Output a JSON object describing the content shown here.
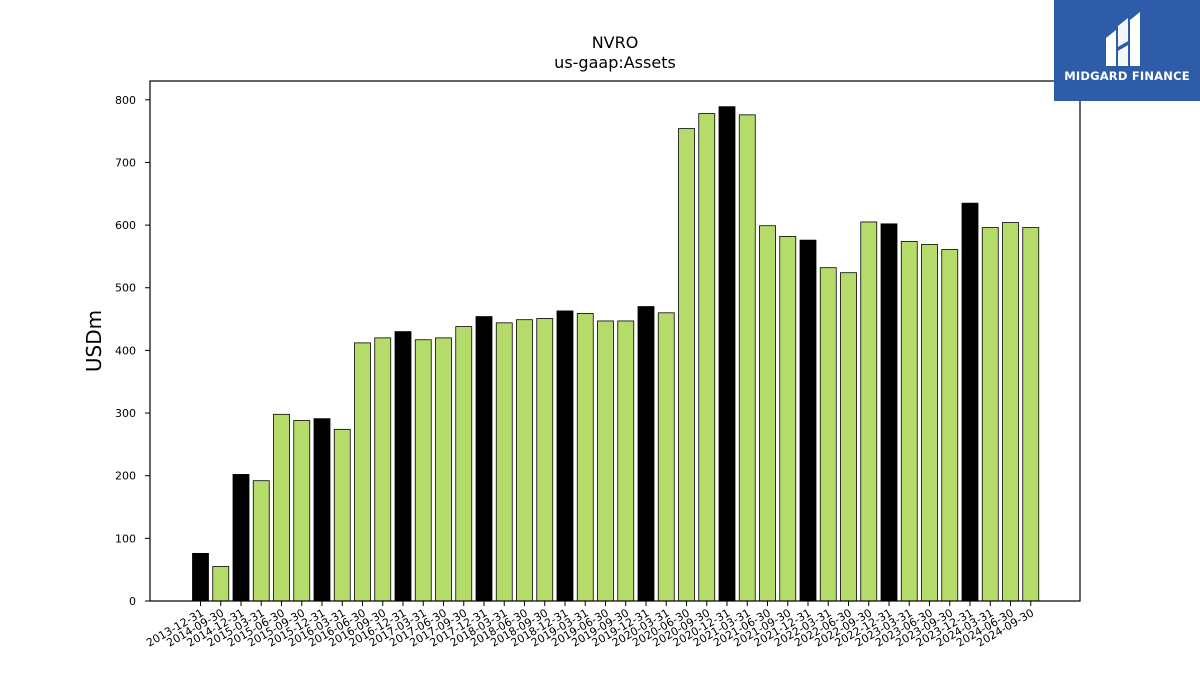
{
  "chart_data": {
    "type": "bar",
    "title": "NVRO",
    "subtitle": "us-gaap:Assets",
    "ylabel": "USDm",
    "xlabel": "",
    "ylim": [
      0,
      830
    ],
    "yticks": [
      0,
      100,
      200,
      300,
      400,
      500,
      600,
      700,
      800
    ],
    "grid": false,
    "categories": [
      "2013-12-31",
      "2014-09-30",
      "2014-12-31",
      "2015-03-31",
      "2015-06-30",
      "2015-09-30",
      "2015-12-31",
      "2016-03-31",
      "2016-06-30",
      "2016-09-30",
      "2016-12-31",
      "2017-03-31",
      "2017-06-30",
      "2017-09-30",
      "2017-12-31",
      "2018-03-31",
      "2018-06-30",
      "2018-09-30",
      "2018-12-31",
      "2019-03-31",
      "2019-06-30",
      "2019-09-30",
      "2019-12-31",
      "2020-03-31",
      "2020-06-30",
      "2020-09-30",
      "2020-12-31",
      "2021-03-31",
      "2021-06-30",
      "2021-09-30",
      "2021-12-31",
      "2022-03-31",
      "2022-06-30",
      "2022-09-30",
      "2022-12-31",
      "2023-03-31",
      "2023-06-30",
      "2023-09-30",
      "2023-12-31",
      "2024-03-31",
      "2024-06-30",
      "2024-09-30"
    ],
    "values": [
      76,
      55,
      202,
      192,
      298,
      288,
      291,
      274,
      412,
      420,
      430,
      417,
      420,
      438,
      454,
      444,
      449,
      451,
      463,
      459,
      447,
      447,
      470,
      460,
      754,
      778,
      789,
      776,
      599,
      582,
      576,
      532,
      524,
      605,
      602,
      574,
      569,
      561,
      635,
      596,
      604,
      596
    ],
    "highlight_indices": [
      0,
      2,
      6,
      10,
      14,
      18,
      22,
      26,
      30,
      34,
      38
    ],
    "colors": {
      "bar": "#b5dc6a",
      "bar_highlight": "#000000",
      "edge": "#000000"
    }
  },
  "logo": {
    "text": "MIDGARD FINANCE",
    "background": "#2f5ca8"
  }
}
